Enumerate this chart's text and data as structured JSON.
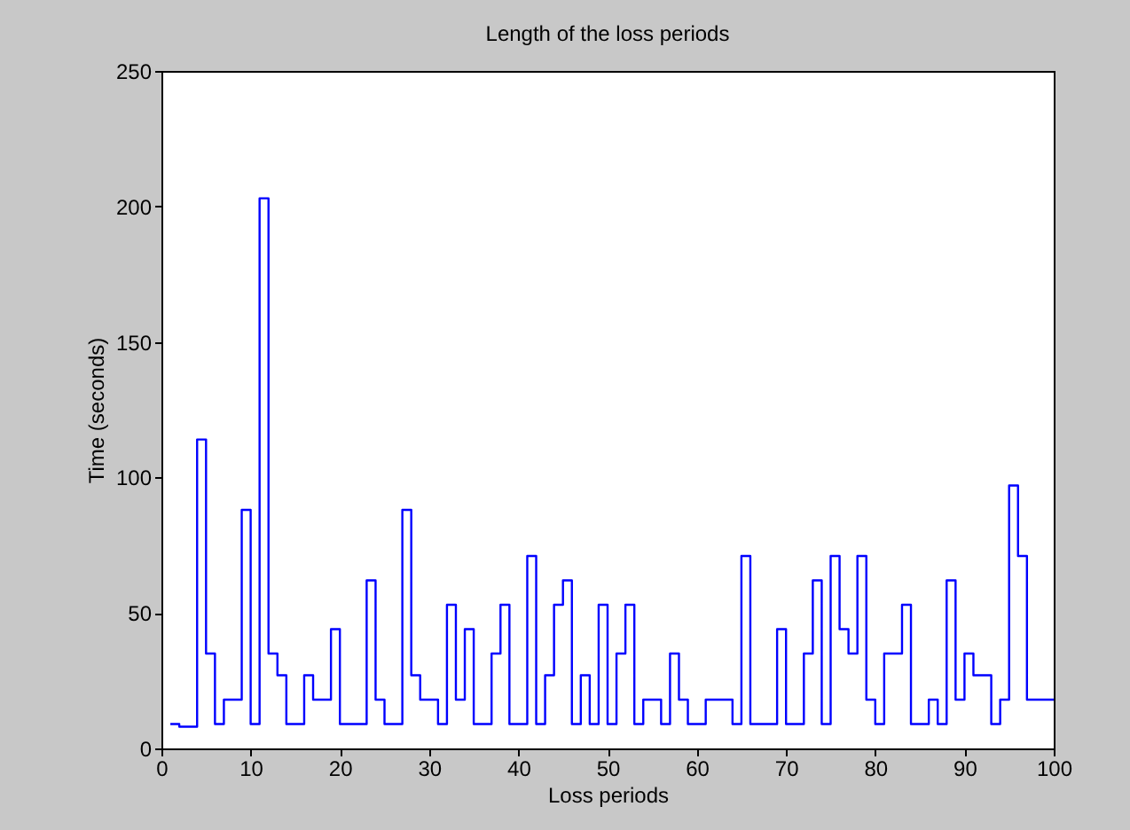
{
  "chart_data": {
    "type": "step",
    "title": "Length of the loss periods",
    "xlabel": "Loss periods",
    "ylabel": "Time (seconds)",
    "x": [
      1,
      2,
      3,
      4,
      5,
      6,
      7,
      8,
      9,
      10,
      11,
      12,
      13,
      14,
      15,
      16,
      17,
      18,
      19,
      20,
      21,
      22,
      23,
      24,
      25,
      26,
      27,
      28,
      29,
      30,
      31,
      32,
      33,
      34,
      35,
      36,
      37,
      38,
      39,
      40,
      41,
      42,
      43,
      44,
      45,
      46,
      47,
      48,
      49,
      50,
      51,
      52,
      53,
      54,
      55,
      56,
      57,
      58,
      59,
      60,
      61,
      62,
      63,
      64,
      65,
      66,
      67,
      68,
      69,
      70,
      71,
      72,
      73,
      74,
      75,
      76,
      77,
      78,
      79,
      80,
      81,
      82,
      83,
      84,
      85,
      86,
      87,
      88,
      89,
      90,
      91,
      92,
      93,
      94,
      95,
      96,
      97,
      98,
      99,
      100
    ],
    "series": [
      {
        "color": "#0000ff",
        "values": [
          9,
          8,
          8,
          114,
          35,
          9,
          18,
          18,
          88,
          9,
          203,
          35,
          27,
          9,
          9,
          27,
          18,
          18,
          44,
          9,
          9,
          9,
          62,
          18,
          9,
          9,
          88,
          27,
          18,
          18,
          9,
          53,
          18,
          44,
          9,
          9,
          35,
          53,
          9,
          9,
          71,
          9,
          27,
          53,
          62,
          9,
          27,
          9,
          53,
          9,
          35,
          53,
          9,
          18,
          18,
          9,
          35,
          18,
          9,
          9,
          18,
          18,
          18,
          9,
          71,
          9,
          9,
          9,
          44,
          9,
          9,
          35,
          62,
          9,
          71,
          44,
          35,
          71,
          18,
          9,
          35,
          35,
          53,
          9,
          9,
          18,
          9,
          62,
          18,
          35,
          27,
          27,
          9,
          18,
          97,
          71,
          18,
          18,
          18,
          18
        ]
      }
    ],
    "xlim": [
      0,
      100
    ],
    "xticks": [
      0,
      10,
      20,
      30,
      40,
      50,
      60,
      70,
      80,
      90,
      100
    ],
    "ylim": [
      0,
      250
    ],
    "yticks": [
      0,
      50,
      100,
      150,
      200,
      250
    ],
    "grid": false,
    "marker": "none",
    "line_style": "solid"
  }
}
